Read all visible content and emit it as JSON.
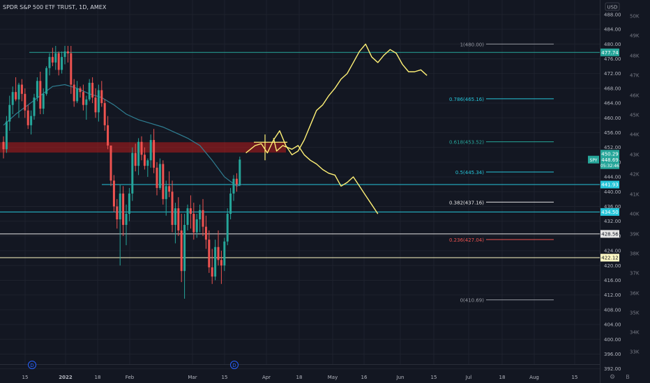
{
  "header": {
    "title": "SPDR S&P 500 ETF TRUST, 1D, AMEX"
  },
  "price_scale": {
    "currency": "USD",
    "ticks": [
      392,
      396,
      400,
      404,
      408,
      412,
      416,
      420,
      424,
      428,
      432,
      436,
      440,
      444,
      448,
      452,
      456,
      460,
      464,
      468,
      472,
      476,
      480,
      484,
      488
    ]
  },
  "volume_scale": {
    "ticks": [
      "33K",
      "34K",
      "35K",
      "36K",
      "37K",
      "38K",
      "39K",
      "40K",
      "41K",
      "42K",
      "43K",
      "44K",
      "45K",
      "46K",
      "47K",
      "48K",
      "49K",
      "50K"
    ]
  },
  "time_axis": {
    "labels": [
      {
        "text": "15",
        "bold": false
      },
      {
        "text": "2022",
        "bold": true
      },
      {
        "text": "18",
        "bold": false
      },
      {
        "text": "Feb",
        "bold": false
      },
      {
        "text": "Mar",
        "bold": false
      },
      {
        "text": "15",
        "bold": false
      },
      {
        "text": "Apr",
        "bold": false
      },
      {
        "text": "18",
        "bold": false
      },
      {
        "text": "May",
        "bold": false
      },
      {
        "text": "16",
        "bold": false
      },
      {
        "text": "Jun",
        "bold": false
      },
      {
        "text": "15",
        "bold": false
      },
      {
        "text": "Jul",
        "bold": false
      },
      {
        "text": "18",
        "bold": false
      },
      {
        "text": "Aug",
        "bold": false
      },
      {
        "text": "15",
        "bold": false
      }
    ]
  },
  "dividend_markers": [
    "D",
    "D"
  ],
  "price_tags": {
    "last": {
      "symbol": "SPY",
      "price": "448.69",
      "countdown": "05:32:46",
      "color": "#26a69a"
    },
    "prev": {
      "price": "450.29",
      "color": "#26a69a"
    }
  },
  "horizontal_levels": [
    {
      "price": 477.74,
      "label": "477.74",
      "color": "#26a69a",
      "tag_fg": "#ffffff"
    },
    {
      "price": 441.93,
      "label": "441.93",
      "color": "#26c6da",
      "tag_fg": "#ffffff"
    },
    {
      "price": 434.5,
      "label": "434.50",
      "color": "#26c6da",
      "tag_fg": "#ffffff"
    },
    {
      "price": 428.56,
      "label": "428.56",
      "color": "#e6e6e6",
      "tag_fg": "#131722"
    },
    {
      "price": 422.12,
      "label": "422.12",
      "color": "#fff9c4",
      "tag_fg": "#131722"
    }
  ],
  "resistance_zone": {
    "from": 450.6,
    "to": 453.4,
    "color": "#b71c1c"
  },
  "fibonacci": [
    {
      "label": "1(480.00)",
      "price": 480.0,
      "color": "#9598a1"
    },
    {
      "label": "0.786(465.16)",
      "price": 465.16,
      "color": "#26c6da"
    },
    {
      "label": "0.618(453.52)",
      "price": 453.52,
      "color": "#26a69a"
    },
    {
      "label": "0.5(445.34)",
      "price": 445.34,
      "color": "#26c6da"
    },
    {
      "label": "0.382(437.16)",
      "price": 437.16,
      "color": "#e6e6e6"
    },
    {
      "label": "0.236(427.04)",
      "price": 427.04,
      "color": "#ef5350"
    },
    {
      "label": "0(410.69)",
      "price": 410.69,
      "color": "#9598a1"
    }
  ],
  "colors": {
    "up": "#26a69a",
    "down": "#ef5350",
    "ma": "#2f7f93",
    "projection": "#fff176"
  },
  "scale_bottom_icons": [
    "settings-icon",
    "B"
  ],
  "chart_data": {
    "type": "candlestick",
    "title": "SPDR S&P 500 ETF TRUST, 1D, AMEX",
    "x_unit": "trading session",
    "ylim": [
      392,
      490
    ],
    "y_unit": "USD",
    "candles": [
      [
        453.5,
        455.0,
        449.0,
        451.5
      ],
      [
        451.5,
        460.5,
        450.5,
        459.0
      ],
      [
        459.0,
        466.0,
        456.5,
        463.5
      ],
      [
        463.5,
        468.5,
        461.0,
        467.0
      ],
      [
        467.0,
        471.0,
        464.5,
        465.0
      ],
      [
        465.0,
        469.5,
        460.0,
        469.0
      ],
      [
        469.0,
        470.5,
        464.5,
        466.5
      ],
      [
        466.5,
        468.0,
        460.0,
        462.0
      ],
      [
        462.0,
        463.5,
        457.0,
        458.0
      ],
      [
        458.0,
        462.0,
        455.5,
        460.5
      ],
      [
        460.5,
        466.5,
        459.5,
        465.5
      ],
      [
        465.5,
        471.0,
        464.5,
        470.0
      ],
      [
        470.0,
        472.5,
        461.0,
        462.5
      ],
      [
        462.5,
        468.0,
        461.0,
        466.5
      ],
      [
        466.5,
        474.0,
        466.0,
        473.5
      ],
      [
        473.5,
        477.5,
        471.5,
        476.5
      ],
      [
        476.5,
        479.0,
        474.0,
        475.0
      ],
      [
        475.0,
        479.5,
        473.0,
        477.5
      ],
      [
        477.5,
        478.0,
        471.5,
        473.0
      ],
      [
        473.0,
        478.0,
        472.0,
        476.5
      ],
      [
        476.5,
        479.5,
        474.5,
        478.0
      ],
      [
        478.0,
        479.5,
        475.0,
        477.5
      ],
      [
        477.5,
        479.5,
        466.5,
        469.0
      ],
      [
        469.0,
        470.5,
        463.0,
        464.5
      ],
      [
        464.5,
        470.0,
        464.0,
        468.0
      ],
      [
        468.0,
        468.5,
        465.5,
        467.0
      ],
      [
        467.0,
        469.0,
        462.0,
        463.5
      ],
      [
        463.5,
        466.0,
        459.5,
        465.0
      ],
      [
        465.0,
        470.5,
        464.5,
        469.5
      ],
      [
        469.5,
        471.0,
        464.0,
        465.5
      ],
      [
        465.5,
        468.0,
        460.0,
        461.5
      ],
      [
        461.5,
        469.0,
        459.0,
        467.5
      ],
      [
        467.5,
        470.0,
        463.0,
        464.0
      ],
      [
        464.0,
        465.0,
        456.5,
        458.0
      ],
      [
        458.0,
        460.5,
        451.5,
        452.5
      ],
      [
        452.5,
        452.0,
        441.5,
        443.0
      ],
      [
        443.0,
        444.5,
        434.5,
        436.0
      ],
      [
        436.0,
        438.0,
        430.0,
        432.5
      ],
      [
        432.5,
        442.0,
        420.0,
        439.5
      ],
      [
        439.5,
        441.5,
        428.0,
        431.0
      ],
      [
        431.0,
        436.5,
        425.5,
        434.0
      ],
      [
        434.0,
        441.0,
        432.0,
        439.5
      ],
      [
        439.5,
        452.0,
        437.5,
        450.5
      ],
      [
        450.5,
        453.0,
        445.5,
        447.0
      ],
      [
        447.0,
        454.5,
        444.5,
        453.5
      ],
      [
        453.5,
        455.0,
        448.5,
        450.0
      ],
      [
        450.0,
        452.0,
        446.0,
        447.0
      ],
      [
        447.0,
        449.0,
        444.0,
        448.5
      ],
      [
        448.5,
        455.5,
        446.5,
        454.0
      ],
      [
        454.0,
        457.0,
        445.0,
        446.5
      ],
      [
        446.5,
        448.0,
        439.0,
        441.0
      ],
      [
        441.0,
        449.0,
        440.5,
        447.5
      ],
      [
        447.5,
        448.5,
        436.5,
        438.0
      ],
      [
        438.0,
        443.0,
        433.5,
        441.5
      ],
      [
        441.5,
        445.5,
        438.5,
        440.0
      ],
      [
        440.0,
        443.0,
        429.0,
        431.0
      ],
      [
        431.0,
        437.0,
        426.0,
        435.5
      ],
      [
        435.5,
        438.5,
        428.0,
        429.5
      ],
      [
        429.5,
        434.0,
        415.5,
        418.5
      ],
      [
        418.5,
        434.0,
        411.0,
        431.0
      ],
      [
        431.0,
        436.5,
        429.5,
        435.5
      ],
      [
        435.5,
        439.0,
        430.0,
        434.0
      ],
      [
        434.0,
        437.0,
        427.0,
        429.0
      ],
      [
        429.0,
        434.0,
        427.5,
        432.5
      ],
      [
        432.5,
        436.5,
        429.0,
        435.0
      ],
      [
        435.0,
        438.0,
        428.0,
        430.5
      ],
      [
        430.5,
        433.5,
        424.5,
        427.0
      ],
      [
        427.0,
        429.5,
        418.0,
        419.5
      ],
      [
        419.5,
        424.5,
        415.0,
        417.0
      ],
      [
        417.0,
        427.0,
        416.0,
        425.0
      ],
      [
        425.0,
        429.5,
        420.0,
        421.5
      ],
      [
        421.5,
        424.0,
        415.0,
        420.0
      ],
      [
        420.0,
        427.5,
        418.5,
        426.5
      ],
      [
        426.5,
        435.5,
        425.5,
        434.0
      ],
      [
        434.0,
        441.0,
        432.5,
        439.5
      ],
      [
        439.5,
        444.5,
        437.5,
        443.5
      ],
      [
        443.5,
        445.0,
        440.0,
        442.0
      ],
      [
        442.0,
        449.5,
        441.5,
        448.7
      ]
    ],
    "moving_average": [
      {
        "session": 0,
        "value": 458.0
      },
      {
        "session": 4,
        "value": 461.0
      },
      {
        "session": 8,
        "value": 463.5
      },
      {
        "session": 12,
        "value": 466.0
      },
      {
        "session": 16,
        "value": 468.5
      },
      {
        "session": 20,
        "value": 469.0
      },
      {
        "session": 24,
        "value": 468.0
      },
      {
        "session": 28,
        "value": 466.5
      },
      {
        "session": 32,
        "value": 465.5
      },
      {
        "session": 36,
        "value": 463.5
      },
      {
        "session": 40,
        "value": 461.0
      },
      {
        "session": 44,
        "value": 459.5
      },
      {
        "session": 48,
        "value": 458.5
      },
      {
        "session": 52,
        "value": 457.5
      },
      {
        "session": 56,
        "value": 456.0
      },
      {
        "session": 60,
        "value": 454.5
      },
      {
        "session": 64,
        "value": 452.5
      },
      {
        "session": 68,
        "value": 448.5
      },
      {
        "session": 72,
        "value": 444.0
      },
      {
        "session": 76,
        "value": 441.5
      },
      {
        "session": 78,
        "value": 442.0
      }
    ],
    "projections": [
      {
        "name": "bullish",
        "points": [
          [
            79,
            450.5
          ],
          [
            82,
            452.5
          ],
          [
            84,
            453.0
          ],
          [
            86,
            450.5
          ],
          [
            88,
            454.0
          ],
          [
            90,
            456.5
          ],
          [
            92,
            452.5
          ],
          [
            94,
            450.0
          ],
          [
            96,
            451.0
          ],
          [
            98,
            454.0
          ],
          [
            100,
            458.0
          ],
          [
            102,
            462.0
          ],
          [
            104,
            463.5
          ],
          [
            106,
            466.0
          ],
          [
            108,
            468.0
          ],
          [
            110,
            470.5
          ],
          [
            112,
            472.0
          ],
          [
            114,
            475.0
          ],
          [
            116,
            478.0
          ],
          [
            118,
            480.0
          ],
          [
            120,
            476.5
          ],
          [
            122,
            475.0
          ],
          [
            124,
            477.0
          ],
          [
            126,
            478.5
          ],
          [
            128,
            477.5
          ],
          [
            130,
            474.5
          ],
          [
            132,
            472.5
          ],
          [
            134,
            472.5
          ],
          [
            136,
            473.0
          ],
          [
            138,
            471.5
          ]
        ]
      },
      {
        "name": "bearish",
        "points": [
          [
            88,
            454.5
          ],
          [
            89,
            451.0
          ],
          [
            91,
            452.5
          ],
          [
            94,
            451.5
          ],
          [
            96,
            452.5
          ],
          [
            98,
            450.0
          ],
          [
            100,
            448.5
          ],
          [
            102,
            447.5
          ],
          [
            104,
            446.0
          ],
          [
            106,
            445.0
          ],
          [
            108,
            444.5
          ],
          [
            110,
            441.5
          ],
          [
            112,
            442.5
          ],
          [
            114,
            444.0
          ],
          [
            116,
            441.5
          ],
          [
            118,
            439.0
          ],
          [
            120,
            436.5
          ],
          [
            122,
            434.0
          ]
        ]
      }
    ],
    "horizontal_levels": [
      477.74,
      441.93,
      434.5,
      428.56,
      422.12
    ],
    "fibonacci_levels": [
      {
        "ratio": 1,
        "price": 480.0
      },
      {
        "ratio": 0.786,
        "price": 465.16
      },
      {
        "ratio": 0.618,
        "price": 453.52
      },
      {
        "ratio": 0.5,
        "price": 445.34
      },
      {
        "ratio": 0.382,
        "price": 437.16
      },
      {
        "ratio": 0.236,
        "price": 427.04
      },
      {
        "ratio": 0,
        "price": 410.69
      }
    ],
    "resistance_zone": [
      450.6,
      453.4
    ],
    "last_price": 448.69,
    "previous_close": 450.29
  }
}
